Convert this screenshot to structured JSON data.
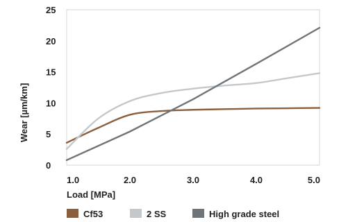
{
  "chart_data": {
    "type": "line",
    "xlabel": "Load [MPa]",
    "ylabel": "Wear [µm/km]",
    "xlim": [
      1.0,
      5.0
    ],
    "ylim": [
      0,
      25
    ],
    "x_ticks": [
      "1.0",
      "2.0",
      "3.0",
      "4.0",
      "5.0"
    ],
    "y_ticks": [
      "0",
      "5",
      "10",
      "15",
      "20",
      "25"
    ],
    "grid": false,
    "legend_position": "bottom",
    "series": [
      {
        "name": "Cf53",
        "color": "#8b5e3c",
        "x": [
          1.0,
          1.5,
          2.0,
          2.5,
          3.0,
          3.5,
          4.0,
          4.5,
          5.0
        ],
        "y": [
          3.6,
          6.0,
          8.1,
          8.7,
          8.9,
          9.0,
          9.1,
          9.15,
          9.2
        ]
      },
      {
        "name": "2 SS",
        "color": "#c5c8cb",
        "x": [
          1.0,
          1.5,
          2.0,
          2.5,
          3.0,
          3.5,
          4.0,
          4.5,
          5.0
        ],
        "y": [
          2.6,
          7.5,
          10.3,
          11.6,
          12.3,
          12.8,
          13.2,
          14.0,
          14.8
        ]
      },
      {
        "name": "High grade steel",
        "color": "#6e7478",
        "x": [
          1.0,
          2.0,
          3.0,
          4.0,
          5.0
        ],
        "y": [
          0.8,
          5.4,
          10.6,
          16.3,
          22.1
        ]
      }
    ]
  }
}
